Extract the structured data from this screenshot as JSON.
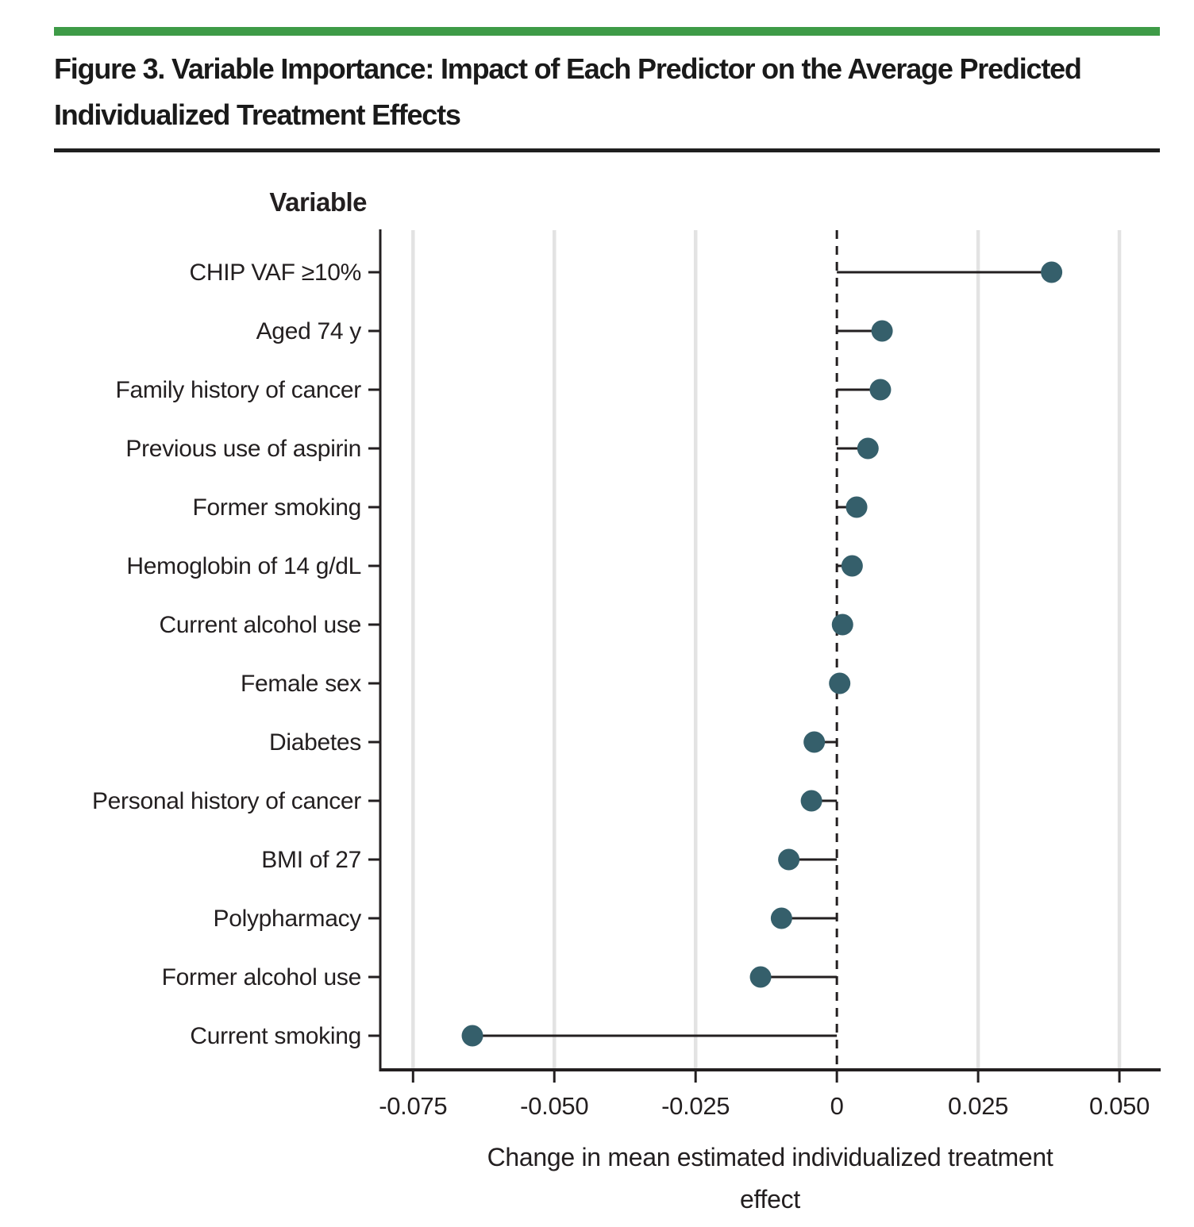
{
  "figure": {
    "title": "Figure 3. Variable Importance: Impact of Each Predictor on the Average Predicted Individualized Treatment Effects"
  },
  "chart_data": {
    "type": "scatter",
    "style": "lollipop dot plot, horizontal stems from zero reference line",
    "y_header": "Variable",
    "categories": [
      "CHIP VAF ≥10%",
      "Aged 74 y",
      "Family history of cancer",
      "Previous use of aspirin",
      "Former smoking",
      "Hemoglobin of 14 g/dL",
      "Current alcohol use",
      "Female sex",
      "Diabetes",
      "Personal history of cancer",
      "BMI of 27",
      "Polypharmacy",
      "Former alcohol use",
      "Current smoking"
    ],
    "values": [
      0.038,
      0.008,
      0.0077,
      0.0055,
      0.0035,
      0.0027,
      0.001,
      0.0005,
      -0.004,
      -0.0045,
      -0.0085,
      -0.0098,
      -0.0135,
      -0.0645
    ],
    "xlabel": "Change in mean estimated individualized treatment effect",
    "xticks": [
      -0.075,
      -0.05,
      -0.025,
      0,
      0.025,
      0.05
    ],
    "xtick_labels": [
      "-0.075",
      "-0.050",
      "-0.025",
      "0",
      "0.025",
      "0.050"
    ],
    "xlim": [
      -0.0808,
      0.0573
    ],
    "zero_reference_line": "dashed",
    "grid": "vertical gridlines at x ticks",
    "legend": "none",
    "colors": {
      "dot": "#355f6b",
      "stem": "#231f20",
      "axis": "#231f20",
      "gridline": "#e3e3e3",
      "accent_bar": "#3e9b47",
      "text": "#231f20"
    }
  }
}
